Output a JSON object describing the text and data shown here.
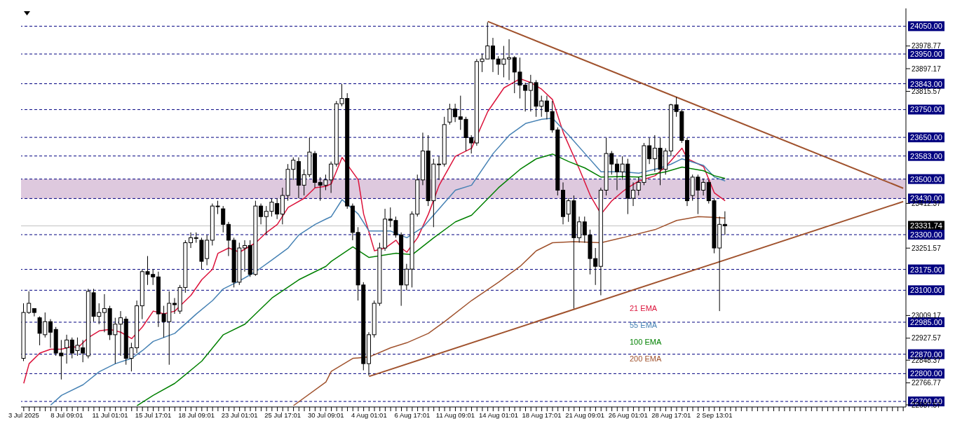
{
  "chart_data": {
    "type": "candlestick",
    "categories": [
      "3 Jul 2025",
      null,
      null,
      null,
      null,
      null,
      null,
      null,
      "8 Jul 09:01",
      null,
      null,
      null,
      null,
      null,
      null,
      null,
      "11 Jul 01:01",
      null,
      null,
      null,
      null,
      null,
      null,
      null,
      "15 Jul 17:01",
      null,
      null,
      null,
      null,
      null,
      null,
      null,
      "18 Jul 09:01",
      null,
      null,
      null,
      null,
      null,
      null,
      null,
      "23 Jul 01:01",
      null,
      null,
      null,
      null,
      null,
      null,
      null,
      "25 Jul 17:01",
      null,
      null,
      null,
      null,
      null,
      null,
      null,
      "30 Jul 09:01",
      null,
      null,
      null,
      null,
      null,
      null,
      null,
      "4 Aug 01:01",
      null,
      null,
      null,
      null,
      null,
      null,
      null,
      "6 Aug 17:01",
      null,
      null,
      null,
      null,
      null,
      null,
      null,
      "11 Aug 09:01",
      null,
      null,
      null,
      null,
      null,
      null,
      null,
      "14 Aug 01:01",
      null,
      null,
      null,
      null,
      null,
      null,
      null,
      "18 Aug 17:01",
      null,
      null,
      null,
      null,
      null,
      null,
      null,
      "21 Aug 09:01",
      null,
      null,
      null,
      null,
      null,
      null,
      null,
      "26 Aug 01:01",
      null,
      null,
      null,
      null,
      null,
      null,
      null,
      "28 Aug 17:01",
      null,
      null,
      null,
      null,
      null,
      null,
      null,
      "2 Sep 13:01",
      null,
      null,
      null,
      null,
      null,
      null,
      null,
      null,
      null,
      null,
      null,
      null,
      null,
      null,
      null,
      null,
      null,
      null,
      null,
      null,
      null,
      null,
      null,
      null,
      null,
      null,
      null,
      null,
      null,
      null,
      null,
      null,
      null,
      null,
      null
    ],
    "ohlc": [
      [
        22855,
        23053,
        22845,
        23020
      ],
      [
        23020,
        23096,
        23015,
        23053
      ],
      [
        23034,
        23034,
        23006,
        23020
      ],
      [
        23001,
        23006,
        22902,
        22945
      ],
      [
        22940,
        23020,
        22930,
        22987
      ],
      [
        22987,
        22996,
        22893,
        22949
      ],
      [
        22959,
        22968,
        22864,
        22874
      ],
      [
        22874,
        22921,
        22779,
        22864
      ],
      [
        22893,
        22940,
        22836,
        22921
      ],
      [
        22921,
        22930,
        22855,
        22874
      ],
      [
        22883,
        22930,
        22864,
        22902
      ],
      [
        22893,
        22921,
        22841,
        22874
      ],
      [
        22864,
        23105,
        22855,
        23096
      ],
      [
        23091,
        23105,
        22987,
        23006
      ],
      [
        23006,
        23053,
        22978,
        23020
      ],
      [
        23020,
        23086,
        22949,
        23034
      ],
      [
        23034,
        23044,
        22921,
        22940
      ],
      [
        22940,
        23001,
        22836,
        22978
      ],
      [
        22978,
        23025,
        22864,
        23001
      ],
      [
        22996,
        23006,
        22832,
        22855
      ],
      [
        22855,
        22911,
        22808,
        22893
      ],
      [
        22893,
        23063,
        22874,
        23044
      ],
      [
        23044,
        23176,
        22996,
        23167
      ],
      [
        23167,
        23223,
        23119,
        23157
      ],
      [
        23157,
        23176,
        23119,
        23148
      ],
      [
        23148,
        23167,
        22968,
        23015
      ],
      [
        23015,
        23044,
        22930,
        22987
      ],
      [
        22987,
        23096,
        22832,
        23053
      ],
      [
        23053,
        23072,
        23015,
        23048
      ],
      [
        23025,
        23119,
        23015,
        23110
      ],
      [
        23110,
        23280,
        23091,
        23271
      ],
      [
        23271,
        23308,
        23252,
        23289
      ],
      [
        23289,
        23308,
        23271,
        23289
      ],
      [
        23280,
        23289,
        23176,
        23204
      ],
      [
        23214,
        23299,
        23190,
        23280
      ],
      [
        23280,
        23412,
        23261,
        23403
      ],
      [
        23403,
        23422,
        23374,
        23403
      ],
      [
        23393,
        23403,
        23308,
        23337
      ],
      [
        23337,
        23346,
        23223,
        23280
      ],
      [
        23280,
        23289,
        23110,
        23129
      ],
      [
        23129,
        23271,
        23119,
        23252
      ],
      [
        23252,
        23280,
        23167,
        23261
      ],
      [
        23261,
        23280,
        23148,
        23157
      ],
      [
        23157,
        23422,
        23152,
        23403
      ],
      [
        23403,
        23412,
        23337,
        23365
      ],
      [
        23365,
        23403,
        23299,
        23384
      ],
      [
        23384,
        23431,
        23365,
        23417
      ],
      [
        23412,
        23431,
        23356,
        23374
      ],
      [
        23374,
        23469,
        23337,
        23441
      ],
      [
        23441,
        23554,
        23422,
        23535
      ],
      [
        23535,
        23578,
        23497,
        23568
      ],
      [
        23563,
        23578,
        23431,
        23478
      ],
      [
        23478,
        23535,
        23441,
        23516
      ],
      [
        23516,
        23649,
        23507,
        23597
      ],
      [
        23592,
        23601,
        23469,
        23488
      ],
      [
        23488,
        23507,
        23422,
        23478
      ],
      [
        23478,
        23516,
        23460,
        23497
      ],
      [
        23497,
        23563,
        23450,
        23554
      ],
      [
        23554,
        23781,
        23545,
        23771
      ],
      [
        23771,
        23842,
        23762,
        23790
      ],
      [
        23790,
        23809,
        23393,
        23403
      ],
      [
        23403,
        23412,
        23280,
        23308
      ],
      [
        23308,
        23327,
        23063,
        23119
      ],
      [
        23119,
        23129,
        22812,
        22836
      ],
      [
        22836,
        22949,
        22793,
        22940
      ],
      [
        22940,
        23063,
        22930,
        23053
      ],
      [
        23053,
        23271,
        23044,
        23252
      ],
      [
        23252,
        23393,
        23242,
        23356
      ],
      [
        23356,
        23398,
        23327,
        23351
      ],
      [
        23351,
        23365,
        23289,
        23299
      ],
      [
        23299,
        23308,
        23044,
        23119
      ],
      [
        23119,
        23195,
        23100,
        23176
      ],
      [
        23176,
        23384,
        23110,
        23374
      ],
      [
        23374,
        23516,
        23365,
        23497
      ],
      [
        23497,
        23667,
        23478,
        23601
      ],
      [
        23601,
        23658,
        23403,
        23422
      ],
      [
        23422,
        23573,
        23327,
        23554
      ],
      [
        23554,
        23582,
        23497,
        23554
      ],
      [
        23554,
        23724,
        23545,
        23696
      ],
      [
        23705,
        23771,
        23696,
        23752
      ],
      [
        23752,
        23771,
        23705,
        23724
      ],
      [
        23724,
        23800,
        23677,
        23715
      ],
      [
        23715,
        23724,
        23601,
        23649
      ],
      [
        23649,
        23658,
        23592,
        23630
      ],
      [
        23630,
        23932,
        23620,
        23923
      ],
      [
        23923,
        23951,
        23885,
        23932
      ],
      [
        23932,
        24064,
        23932,
        23979
      ],
      [
        23979,
        24008,
        23885,
        23932
      ],
      [
        23932,
        23942,
        23875,
        23913
      ],
      [
        23913,
        23979,
        23866,
        23932
      ],
      [
        23932,
        24003,
        23856,
        23937
      ],
      [
        23937,
        23942,
        23809,
        23885
      ],
      [
        23885,
        23937,
        23790,
        23838
      ],
      [
        23838,
        23847,
        23743,
        23819
      ],
      [
        23819,
        23875,
        23743,
        23847
      ],
      [
        23847,
        23856,
        23724,
        23762
      ],
      [
        23762,
        23800,
        23724,
        23781
      ],
      [
        23781,
        23800,
        23715,
        23743
      ],
      [
        23743,
        23781,
        23667,
        23677
      ],
      [
        23677,
        23686,
        23441,
        23460
      ],
      [
        23460,
        23488,
        23337,
        23365
      ],
      [
        23374,
        23431,
        23346,
        23422
      ],
      [
        23422,
        23441,
        23034,
        23289
      ],
      [
        23289,
        23365,
        23271,
        23346
      ],
      [
        23346,
        23365,
        23271,
        23299
      ],
      [
        23299,
        23318,
        23157,
        23214
      ],
      [
        23214,
        23252,
        23119,
        23186
      ],
      [
        23186,
        23469,
        23082,
        23460
      ],
      [
        23460,
        23649,
        23441,
        23592
      ],
      [
        23592,
        23601,
        23516,
        23554
      ],
      [
        23554,
        23573,
        23460,
        23526
      ],
      [
        23526,
        23582,
        23497,
        23554
      ],
      [
        23554,
        23573,
        23374,
        23431
      ],
      [
        23431,
        23488,
        23403,
        23460
      ],
      [
        23460,
        23507,
        23441,
        23488
      ],
      [
        23488,
        23630,
        23478,
        23620
      ],
      [
        23620,
        23649,
        23554,
        23573
      ],
      [
        23573,
        23658,
        23526,
        23611
      ],
      [
        23611,
        23649,
        23478,
        23535
      ],
      [
        23535,
        23611,
        23516,
        23601
      ],
      [
        23601,
        23771,
        23582,
        23767
      ],
      [
        23767,
        23795,
        23724,
        23743
      ],
      [
        23743,
        23752,
        23630,
        23639
      ],
      [
        23639,
        23649,
        23403,
        23422
      ],
      [
        23441,
        23516,
        23422,
        23507
      ],
      [
        23507,
        23516,
        23374,
        23460
      ],
      [
        23460,
        23502,
        23441,
        23488
      ],
      [
        23488,
        23497,
        23412,
        23422
      ],
      [
        23422,
        23431,
        23233,
        23252
      ],
      [
        23252,
        23365,
        23025,
        23337
      ],
      [
        23337,
        23384,
        23299,
        23332
      ],
      null,
      null,
      null,
      null,
      null,
      null,
      null,
      null,
      null,
      null,
      null,
      null,
      null,
      null,
      null,
      null,
      null,
      null,
      null,
      null,
      null,
      null,
      null,
      null,
      null,
      null,
      null,
      null,
      null,
      null,
      null,
      null,
      null
    ],
    "series": [
      {
        "type": "line",
        "name": "21 EMA",
        "color": "#dc143c",
        "values": [
          22765,
          22836,
          null,
          22874,
          null,
          22888,
          null,
          22888,
          null,
          22898,
          22893,
          null,
          22930,
          null,
          22954,
          null,
          22959,
          null,
          22949,
          null,
          22926,
          null,
          22968,
          null,
          23025,
          null,
          23015,
          null,
          23025,
          null,
          null,
          23082,
          null,
          23138,
          null,
          23176,
          23233,
          null,
          23252,
          null,
          23237,
          null,
          null,
          23271,
          null,
          23308,
          null,
          23337,
          null,
          23398,
          null,
          null,
          23431,
          null,
          23469,
          null,
          23474,
          23483,
          null,
          23578,
          null,
          null,
          23497,
          23374,
          null,
          23242,
          null,
          23252,
          null,
          23280,
          23252,
          23237,
          null,
          23289,
          null,
          23374,
          null,
          23478,
          null,
          null,
          23582,
          null,
          null,
          23611,
          null,
          null,
          23743,
          null,
          null,
          23828,
          null,
          null,
          23861,
          null,
          23847,
          null,
          23823,
          null,
          23786,
          null,
          23667,
          null,
          null,
          23535,
          null,
          23441,
          null,
          23374,
          null,
          23422,
          null,
          23455,
          23469,
          null,
          23493,
          null,
          null,
          23512,
          null,
          23545,
          null,
          null,
          23611,
          23573,
          null,
          null,
          23545,
          null,
          23450,
          null,
          23422,
          null,
          null,
          null,
          null,
          null,
          null,
          null,
          null,
          null,
          null,
          null,
          null,
          null,
          null,
          null,
          null,
          null,
          null,
          null,
          null,
          null,
          null,
          null,
          null,
          null,
          null,
          null,
          null,
          null,
          null,
          null,
          null,
          null
        ]
      },
      {
        "type": "line",
        "name": "55 EMA",
        "color": "#4682b4",
        "values": [
          null,
          null,
          null,
          null,
          null,
          22687,
          null,
          22722,
          null,
          null,
          null,
          22760,
          null,
          null,
          22807,
          null,
          null,
          22836,
          null,
          null,
          22855,
          null,
          22883,
          null,
          22916,
          null,
          null,
          null,
          22945,
          null,
          null,
          null,
          23015,
          null,
          null,
          23063,
          null,
          23105,
          null,
          null,
          23134,
          null,
          null,
          23167,
          null,
          null,
          23209,
          null,
          null,
          23252,
          null,
          23299,
          null,
          null,
          23337,
          null,
          23356,
          23365,
          null,
          23426,
          null,
          null,
          23374,
          null,
          23313,
          null,
          null,
          null,
          23313,
          null,
          null,
          23289,
          null,
          null,
          23327,
          null,
          null,
          23393,
          null,
          null,
          23460,
          null,
          null,
          23478,
          null,
          null,
          null,
          23592,
          null,
          null,
          23658,
          null,
          null,
          23700,
          null,
          null,
          23715,
          null,
          23719,
          null,
          null,
          23658,
          null,
          null,
          23592,
          null,
          null,
          23526,
          null,
          null,
          null,
          23526,
          null,
          null,
          23521,
          null,
          null,
          null,
          23540,
          null,
          23554,
          null,
          23573,
          null,
          null,
          null,
          23549,
          null,
          23507,
          null,
          23493,
          null,
          null,
          null,
          null,
          null,
          null,
          null,
          null,
          null,
          null,
          null,
          null,
          null,
          null,
          null,
          null,
          null,
          null,
          null,
          null,
          null,
          null,
          null,
          null,
          null,
          null,
          null,
          null,
          null,
          null,
          null,
          null,
          null
        ]
      },
      {
        "type": "line",
        "name": "100 EMA",
        "color": "#008000",
        "values": [
          null,
          null,
          null,
          null,
          null,
          null,
          null,
          null,
          null,
          null,
          null,
          null,
          null,
          null,
          null,
          null,
          null,
          null,
          null,
          null,
          null,
          22685,
          null,
          null,
          22722,
          null,
          null,
          null,
          22765,
          null,
          null,
          null,
          null,
          22845,
          null,
          null,
          null,
          22940,
          null,
          null,
          null,
          22978,
          null,
          null,
          null,
          null,
          23072,
          null,
          null,
          null,
          null,
          23138,
          null,
          null,
          null,
          null,
          23186,
          23204,
          null,
          null,
          null,
          23256,
          null,
          null,
          23218,
          null,
          null,
          null,
          null,
          23233,
          null,
          null,
          23228,
          null,
          null,
          null,
          23289,
          null,
          null,
          null,
          23346,
          null,
          null,
          23370,
          null,
          null,
          null,
          null,
          23469,
          null,
          null,
          null,
          23535,
          null,
          null,
          23573,
          null,
          null,
          23590,
          null,
          null,
          23563,
          null,
          null,
          23540,
          null,
          null,
          23507,
          null,
          null,
          null,
          23509,
          null,
          null,
          23507,
          null,
          null,
          null,
          null,
          23526,
          null,
          null,
          23543,
          null,
          null,
          null,
          23530,
          null,
          23512,
          null,
          23502,
          null,
          null,
          null,
          null,
          null,
          null,
          null,
          null,
          null,
          null,
          null,
          null,
          null,
          null,
          null,
          null,
          null,
          null,
          null,
          null,
          null,
          null,
          null,
          null,
          null,
          null,
          null,
          null,
          null,
          null,
          null,
          null,
          null
        ]
      },
      {
        "type": "line",
        "name": "200 EMA",
        "color": "#a0522d",
        "values": [
          null,
          null,
          null,
          null,
          null,
          null,
          null,
          null,
          null,
          null,
          null,
          null,
          null,
          null,
          null,
          null,
          null,
          null,
          null,
          null,
          null,
          null,
          null,
          null,
          null,
          null,
          null,
          null,
          null,
          null,
          null,
          null,
          null,
          null,
          null,
          null,
          null,
          null,
          null,
          null,
          null,
          null,
          null,
          null,
          null,
          null,
          null,
          null,
          null,
          null,
          22685,
          null,
          null,
          null,
          null,
          null,
          22770,
          22808,
          null,
          null,
          null,
          22855,
          null,
          null,
          22860,
          null,
          null,
          null,
          22893,
          null,
          null,
          22911,
          null,
          null,
          null,
          22945,
          null,
          null,
          22987,
          null,
          null,
          null,
          null,
          23063,
          null,
          null,
          null,
          null,
          23129,
          null,
          null,
          null,
          23186,
          null,
          null,
          23242,
          null,
          null,
          23271,
          null,
          null,
          null,
          23275,
          null,
          null,
          null,
          null,
          23271,
          null,
          null,
          null,
          23289,
          23294,
          null,
          null,
          null,
          null,
          23318,
          null,
          null,
          null,
          23351,
          null,
          null,
          null,
          23365,
          null,
          null,
          null,
          null,
          23360,
          null,
          null,
          null,
          null,
          null,
          null,
          null,
          null,
          null,
          null,
          null,
          null,
          null,
          null,
          null,
          null,
          null,
          null,
          null,
          null,
          null,
          null,
          null,
          null,
          null,
          null,
          null,
          null,
          null,
          null,
          null,
          null,
          null
        ]
      },
      {
        "type": "line",
        "color": "#a0522d",
        "values": [
          null,
          null,
          null,
          null,
          null,
          null,
          null,
          null,
          null,
          null,
          null,
          null,
          null,
          null,
          null,
          null,
          null,
          null,
          null,
          null,
          null,
          null,
          null,
          null,
          null,
          null,
          null,
          null,
          null,
          null,
          null,
          null,
          null,
          null,
          null,
          null,
          null,
          null,
          null,
          null,
          null,
          null,
          null,
          null,
          null,
          null,
          null,
          null,
          null,
          null,
          null,
          null,
          null,
          null,
          null,
          null,
          null,
          null,
          null,
          null,
          null,
          null,
          null,
          null,
          null,
          null,
          null,
          null,
          null,
          null,
          null,
          null,
          null,
          null,
          null,
          null,
          null,
          null,
          null,
          null,
          null,
          null,
          null,
          null,
          null,
          null,
          24067,
          null,
          null,
          null,
          null,
          null,
          null,
          null,
          null,
          null,
          null,
          null,
          null,
          null,
          null,
          null,
          null,
          null,
          null,
          null,
          null,
          null,
          null,
          null,
          null,
          null,
          null,
          null,
          null,
          null,
          null,
          null,
          null,
          null,
          null,
          null,
          null,
          null,
          null,
          null,
          null,
          null,
          null,
          null,
          null,
          null,
          null,
          null,
          null,
          null,
          null,
          null,
          null,
          null,
          null,
          null,
          null,
          null,
          null,
          null,
          null,
          null,
          null,
          null,
          null,
          null,
          null,
          null,
          null,
          null,
          null,
          null,
          null,
          null,
          null,
          null,
          null,
          23467
        ]
      },
      {
        "type": "line",
        "color": "#a0522d",
        "values": [
          null,
          null,
          null,
          null,
          null,
          null,
          null,
          null,
          null,
          null,
          null,
          null,
          null,
          null,
          null,
          null,
          null,
          null,
          null,
          null,
          null,
          null,
          null,
          null,
          null,
          null,
          null,
          null,
          null,
          null,
          null,
          null,
          null,
          null,
          null,
          null,
          null,
          null,
          null,
          null,
          null,
          null,
          null,
          null,
          null,
          null,
          null,
          null,
          null,
          null,
          null,
          null,
          null,
          null,
          null,
          null,
          null,
          null,
          null,
          null,
          null,
          null,
          null,
          null,
          22790,
          null,
          null,
          null,
          null,
          null,
          null,
          null,
          null,
          null,
          null,
          null,
          null,
          null,
          null,
          null,
          null,
          null,
          null,
          null,
          null,
          null,
          null,
          null,
          null,
          null,
          null,
          null,
          null,
          null,
          null,
          null,
          null,
          null,
          null,
          null,
          null,
          null,
          null,
          null,
          null,
          null,
          null,
          null,
          null,
          null,
          null,
          null,
          null,
          null,
          null,
          null,
          null,
          null,
          null,
          null,
          null,
          null,
          null,
          null,
          null,
          null,
          null,
          null,
          null,
          null,
          null,
          null,
          null,
          null,
          null,
          null,
          null,
          null,
          null,
          null,
          null,
          null,
          null,
          null,
          null,
          null,
          null,
          null,
          null,
          null,
          null,
          null,
          null,
          null,
          null,
          null,
          null,
          null,
          null,
          null,
          null,
          null,
          null,
          23419
        ]
      }
    ],
    "ylim": [
      22680,
      24114
    ],
    "yticks": [
      22687.57,
      22766.77,
      22848.37,
      22927.57,
      23009.17,
      23251.57,
      23412.37,
      23815.57,
      23897.17,
      23978.77
    ],
    "ref_lines": [
      {
        "axis": "y",
        "value": 24050,
        "label": "24050.00",
        "color": "#000080",
        "line_style": "dashed"
      },
      {
        "axis": "y",
        "value": 23950,
        "label": "23950.00",
        "color": "#000080",
        "line_style": "dashed"
      },
      {
        "axis": "y",
        "value": 23843,
        "label": "23843.00",
        "color": "#000080",
        "line_style": "dashed"
      },
      {
        "axis": "y",
        "value": 23750,
        "label": "23750.00",
        "color": "#000080",
        "line_style": "dashed"
      },
      {
        "axis": "y",
        "value": 23650,
        "label": "23650.00",
        "color": "#000080",
        "line_style": "dashed"
      },
      {
        "axis": "y",
        "value": 23583,
        "label": "23583.00",
        "color": "#000080",
        "line_style": "dashed"
      },
      {
        "axis": "y",
        "value": 23500,
        "label": "23500.00",
        "color": "#000080",
        "line_style": "dashed"
      },
      {
        "axis": "y",
        "value": 23430,
        "label": "23430.00",
        "color": "#000080",
        "line_style": "dashed"
      },
      {
        "axis": "y",
        "value": 23331.74,
        "label": "23331.74",
        "color": "#c0c0c0",
        "line_style": "solid"
      },
      {
        "axis": "y",
        "value": 23300,
        "label": "23300.00",
        "color": "#000080",
        "line_style": "dashed"
      },
      {
        "axis": "y",
        "value": 23175,
        "label": "23175.00",
        "color": "#000080",
        "line_style": "dashed"
      },
      {
        "axis": "y",
        "value": 23100,
        "label": "23100.00",
        "color": "#000080",
        "line_style": "dashed"
      },
      {
        "axis": "y",
        "value": 22985,
        "label": "22985.00",
        "color": "#000080",
        "line_style": "dashed"
      },
      {
        "axis": "y",
        "value": 22870,
        "label": "22870.00",
        "color": "#000080",
        "line_style": "dashed"
      },
      {
        "axis": "y",
        "value": 22800,
        "label": "22800.00",
        "color": "#000080",
        "line_style": "dashed"
      },
      {
        "axis": "y",
        "value": 22700,
        "label": "22700.00",
        "color": "#000080",
        "line_style": "dashed"
      }
    ],
    "bands": [
      {
        "axis": "y",
        "from": 23430,
        "to": 23500,
        "color": "#d8bfd8"
      }
    ],
    "legend": "bottom right",
    "marker": "none",
    "line_style": "solid"
  }
}
